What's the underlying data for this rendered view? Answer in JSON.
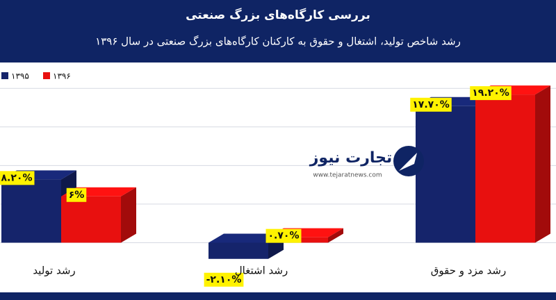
{
  "chart_data": {
    "type": "bar3d",
    "title": "بررسی کارگاه‌های بزرگ صنعتی",
    "subtitle": "رشد شاخص تولید، اشتغال و حقوق به کارکنان کارگاه‌های بزرگ صنعتی در سال ۱۳۹۶",
    "categories": [
      "رشد تولید",
      "رشد اشتغال",
      "رشد مزد و حقوق"
    ],
    "series": [
      {
        "name": "۱۳۹۵",
        "color": "#15246b",
        "values": [
          8.2,
          -2.1,
          17.7
        ],
        "value_labels": [
          "۸.۲۰%",
          "-۲.۱۰%",
          "۱۷.۷۰%"
        ]
      },
      {
        "name": "۱۳۹۶",
        "color": "#e8100f",
        "values": [
          6,
          0.7,
          19.2
        ],
        "value_labels": [
          "۶%",
          "۰.۷۰%",
          "۱۹.۲۰%"
        ]
      }
    ],
    "ylim": [
      -5,
      22
    ],
    "yticks": [
      0,
      5,
      10,
      15,
      20
    ],
    "grid": true,
    "watermark": {
      "name": "تجارت نیوز",
      "url": "www.tejaratnews.com"
    }
  }
}
